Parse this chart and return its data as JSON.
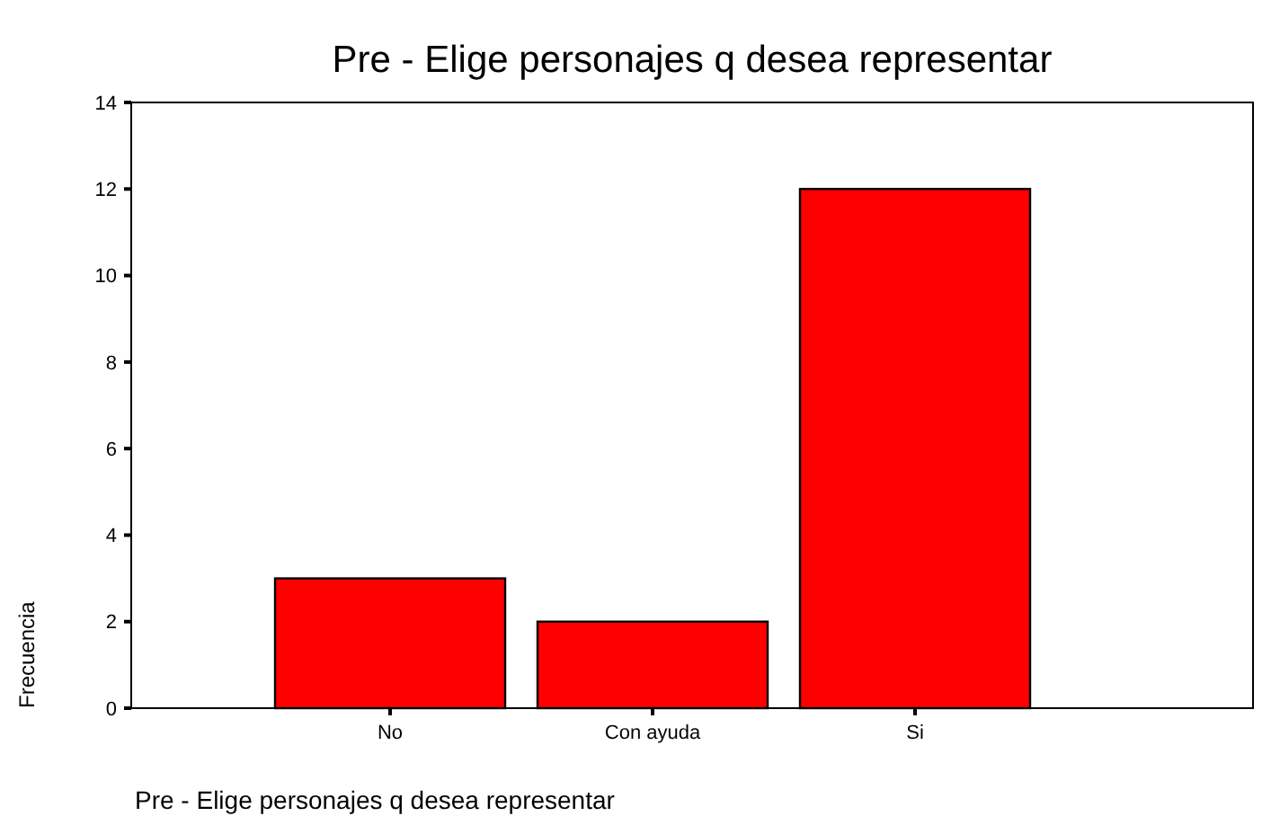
{
  "chart_data": {
    "type": "bar",
    "title": "Pre - Elige personajes q desea representar",
    "xlabel": "Pre - Elige personajes q desea representar",
    "ylabel": "Frecuencia",
    "categories": [
      "No",
      "Con ayuda",
      "Si"
    ],
    "values": [
      3,
      2,
      12
    ],
    "color": "#ff0000",
    "ylim": [
      0,
      14
    ],
    "yticks": [
      0,
      2,
      4,
      6,
      8,
      10,
      12,
      14
    ],
    "grid": false
  }
}
